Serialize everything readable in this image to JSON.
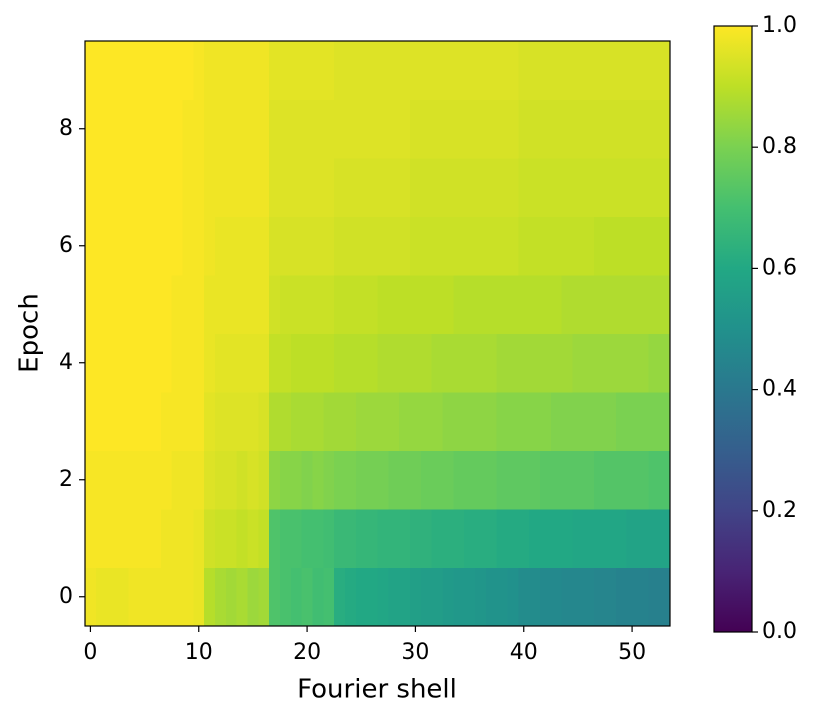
{
  "chart_data": {
    "type": "heatmap",
    "colormap": "viridis",
    "xlabel": "Fourier shell",
    "ylabel": "Epoch",
    "x": [
      0,
      1,
      2,
      3,
      4,
      5,
      6,
      7,
      8,
      9,
      10,
      11,
      12,
      13,
      14,
      15,
      16,
      17,
      18,
      19,
      20,
      21,
      22,
      23,
      24,
      25,
      26,
      27,
      28,
      29,
      30,
      31,
      32,
      33,
      34,
      35,
      36,
      37,
      38,
      39,
      40,
      41,
      42,
      43,
      44,
      45,
      46,
      47,
      48,
      49,
      50,
      51,
      52,
      53
    ],
    "y": [
      0,
      1,
      2,
      3,
      4,
      5,
      6,
      7,
      8,
      9
    ],
    "z": [
      [
        0.98,
        0.97,
        0.97,
        0.97,
        0.98,
        0.98,
        0.98,
        0.98,
        0.98,
        0.98,
        0.97,
        0.89,
        0.87,
        0.86,
        0.87,
        0.85,
        0.86,
        0.72,
        0.71,
        0.7,
        0.71,
        0.69,
        0.7,
        0.62,
        0.61,
        0.6,
        0.6,
        0.59,
        0.58,
        0.58,
        0.56,
        0.55,
        0.55,
        0.54,
        0.53,
        0.53,
        0.52,
        0.51,
        0.51,
        0.5,
        0.48,
        0.48,
        0.47,
        0.47,
        0.46,
        0.46,
        0.46,
        0.45,
        0.45,
        0.44,
        0.44,
        0.44,
        0.43,
        0.43
      ],
      [
        0.99,
        0.99,
        0.99,
        0.99,
        0.99,
        0.99,
        0.99,
        0.98,
        0.98,
        0.98,
        0.97,
        0.93,
        0.92,
        0.92,
        0.91,
        0.92,
        0.91,
        0.72,
        0.71,
        0.71,
        0.7,
        0.7,
        0.69,
        0.67,
        0.67,
        0.66,
        0.66,
        0.65,
        0.65,
        0.65,
        0.64,
        0.64,
        0.63,
        0.63,
        0.63,
        0.62,
        0.62,
        0.62,
        0.61,
        0.61,
        0.61,
        0.6,
        0.6,
        0.6,
        0.6,
        0.59,
        0.59,
        0.59,
        0.59,
        0.59,
        0.58,
        0.58,
        0.58,
        0.58
      ],
      [
        0.99,
        0.99,
        0.99,
        0.99,
        0.99,
        0.99,
        0.99,
        0.99,
        0.98,
        0.98,
        0.98,
        0.95,
        0.94,
        0.94,
        0.93,
        0.94,
        0.93,
        0.83,
        0.82,
        0.82,
        0.81,
        0.82,
        0.81,
        0.8,
        0.8,
        0.79,
        0.79,
        0.79,
        0.78,
        0.78,
        0.78,
        0.77,
        0.77,
        0.77,
        0.76,
        0.76,
        0.76,
        0.76,
        0.75,
        0.75,
        0.75,
        0.75,
        0.74,
        0.74,
        0.74,
        0.74,
        0.74,
        0.73,
        0.73,
        0.73,
        0.73,
        0.73,
        0.72,
        0.72
      ],
      [
        1.0,
        1.0,
        1.0,
        1.0,
        1.0,
        1.0,
        1.0,
        0.99,
        0.99,
        0.99,
        0.99,
        0.96,
        0.95,
        0.95,
        0.95,
        0.95,
        0.94,
        0.88,
        0.88,
        0.87,
        0.87,
        0.87,
        0.86,
        0.86,
        0.86,
        0.85,
        0.85,
        0.85,
        0.85,
        0.84,
        0.84,
        0.84,
        0.84,
        0.83,
        0.83,
        0.83,
        0.83,
        0.83,
        0.82,
        0.82,
        0.82,
        0.82,
        0.82,
        0.81,
        0.81,
        0.81,
        0.81,
        0.81,
        0.81,
        0.8,
        0.8,
        0.8,
        0.8,
        0.8
      ],
      [
        1.0,
        1.0,
        1.0,
        1.0,
        1.0,
        1.0,
        1.0,
        1.0,
        0.99,
        0.99,
        0.99,
        0.97,
        0.96,
        0.96,
        0.96,
        0.96,
        0.96,
        0.91,
        0.91,
        0.9,
        0.9,
        0.9,
        0.9,
        0.89,
        0.89,
        0.89,
        0.89,
        0.88,
        0.88,
        0.88,
        0.88,
        0.88,
        0.87,
        0.87,
        0.87,
        0.87,
        0.87,
        0.87,
        0.86,
        0.86,
        0.86,
        0.86,
        0.86,
        0.86,
        0.86,
        0.85,
        0.85,
        0.85,
        0.85,
        0.85,
        0.85,
        0.85,
        0.84,
        0.84
      ],
      [
        1.0,
        1.0,
        1.0,
        1.0,
        1.0,
        1.0,
        1.0,
        1.0,
        0.99,
        0.99,
        0.99,
        0.97,
        0.97,
        0.97,
        0.97,
        0.97,
        0.97,
        0.93,
        0.92,
        0.92,
        0.92,
        0.92,
        0.92,
        0.91,
        0.91,
        0.91,
        0.91,
        0.9,
        0.9,
        0.9,
        0.9,
        0.9,
        0.9,
        0.9,
        0.89,
        0.89,
        0.89,
        0.89,
        0.89,
        0.89,
        0.89,
        0.89,
        0.89,
        0.89,
        0.88,
        0.88,
        0.88,
        0.88,
        0.88,
        0.88,
        0.88,
        0.88,
        0.88,
        0.88
      ],
      [
        1.0,
        1.0,
        1.0,
        1.0,
        1.0,
        1.0,
        1.0,
        1.0,
        1.0,
        0.99,
        0.99,
        0.98,
        0.97,
        0.97,
        0.97,
        0.97,
        0.97,
        0.94,
        0.94,
        0.94,
        0.94,
        0.94,
        0.94,
        0.93,
        0.93,
        0.93,
        0.93,
        0.93,
        0.93,
        0.93,
        0.92,
        0.92,
        0.92,
        0.92,
        0.92,
        0.92,
        0.92,
        0.92,
        0.92,
        0.92,
        0.91,
        0.91,
        0.91,
        0.91,
        0.91,
        0.91,
        0.91,
        0.9,
        0.9,
        0.9,
        0.9,
        0.9,
        0.9,
        0.9
      ],
      [
        1.0,
        1.0,
        1.0,
        1.0,
        1.0,
        1.0,
        1.0,
        1.0,
        1.0,
        0.99,
        0.99,
        0.98,
        0.98,
        0.98,
        0.98,
        0.98,
        0.98,
        0.95,
        0.95,
        0.95,
        0.95,
        0.95,
        0.95,
        0.94,
        0.94,
        0.94,
        0.94,
        0.94,
        0.94,
        0.94,
        0.93,
        0.93,
        0.93,
        0.93,
        0.93,
        0.93,
        0.93,
        0.93,
        0.93,
        0.93,
        0.92,
        0.92,
        0.92,
        0.92,
        0.92,
        0.92,
        0.92,
        0.92,
        0.92,
        0.92,
        0.92,
        0.92,
        0.92,
        0.92
      ],
      [
        1.0,
        1.0,
        1.0,
        1.0,
        1.0,
        1.0,
        1.0,
        1.0,
        1.0,
        0.99,
        0.99,
        0.98,
        0.98,
        0.98,
        0.98,
        0.98,
        0.98,
        0.95,
        0.95,
        0.95,
        0.95,
        0.95,
        0.95,
        0.95,
        0.95,
        0.95,
        0.95,
        0.95,
        0.95,
        0.95,
        0.94,
        0.94,
        0.94,
        0.94,
        0.94,
        0.94,
        0.94,
        0.94,
        0.94,
        0.94,
        0.93,
        0.93,
        0.93,
        0.93,
        0.93,
        0.93,
        0.93,
        0.93,
        0.93,
        0.93,
        0.93,
        0.93,
        0.93,
        0.93
      ],
      [
        1.0,
        1.0,
        1.0,
        1.0,
        1.0,
        1.0,
        1.0,
        1.0,
        1.0,
        1.0,
        0.99,
        0.98,
        0.98,
        0.98,
        0.98,
        0.98,
        0.98,
        0.96,
        0.96,
        0.96,
        0.96,
        0.96,
        0.96,
        0.95,
        0.95,
        0.95,
        0.95,
        0.95,
        0.95,
        0.95,
        0.95,
        0.95,
        0.95,
        0.95,
        0.95,
        0.95,
        0.95,
        0.95,
        0.95,
        0.95,
        0.94,
        0.94,
        0.94,
        0.94,
        0.94,
        0.94,
        0.94,
        0.94,
        0.94,
        0.94,
        0.94,
        0.94,
        0.94,
        0.94
      ]
    ],
    "xlim": [
      -0.5,
      53.5
    ],
    "xticks": [
      0,
      10,
      20,
      30,
      40,
      50
    ],
    "ylim": [
      -0.5,
      9.5
    ],
    "yticks": [
      0,
      2,
      4,
      6,
      8
    ],
    "clim": [
      0,
      1
    ],
    "cticks": [
      {
        "value": 0,
        "label": "0.0"
      },
      0.2,
      0.4,
      0.6,
      0.8,
      {
        "value": 1,
        "label": "1.0"
      }
    ]
  }
}
